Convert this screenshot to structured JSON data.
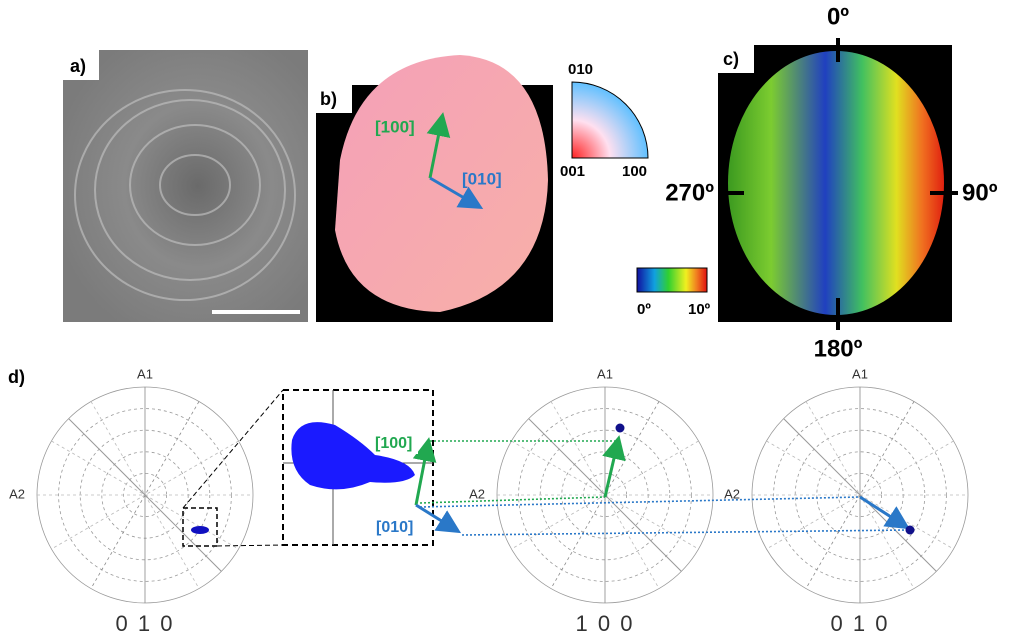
{
  "panels": {
    "a": {
      "label": "a)"
    },
    "b": {
      "label": "b)",
      "directions": [
        "[100]",
        "[010]"
      ],
      "ipf_key": [
        "010",
        "001",
        "100"
      ]
    },
    "c": {
      "label": "c)",
      "angles": [
        "0º",
        "90º",
        "180º",
        "270º"
      ],
      "colorbar": [
        "0º",
        "10º"
      ]
    },
    "d": {
      "label": "d)",
      "inset_directions": [
        "[100]",
        "[010]"
      ],
      "pole_figures": [
        {
          "axes": [
            "A1",
            "A2"
          ],
          "title": "0 1 0"
        },
        {
          "axes": [
            "A1",
            "A2"
          ],
          "title": "1 0 0"
        },
        {
          "axes": [
            "A1",
            "A2"
          ],
          "title": "0 1 0"
        }
      ]
    }
  }
}
